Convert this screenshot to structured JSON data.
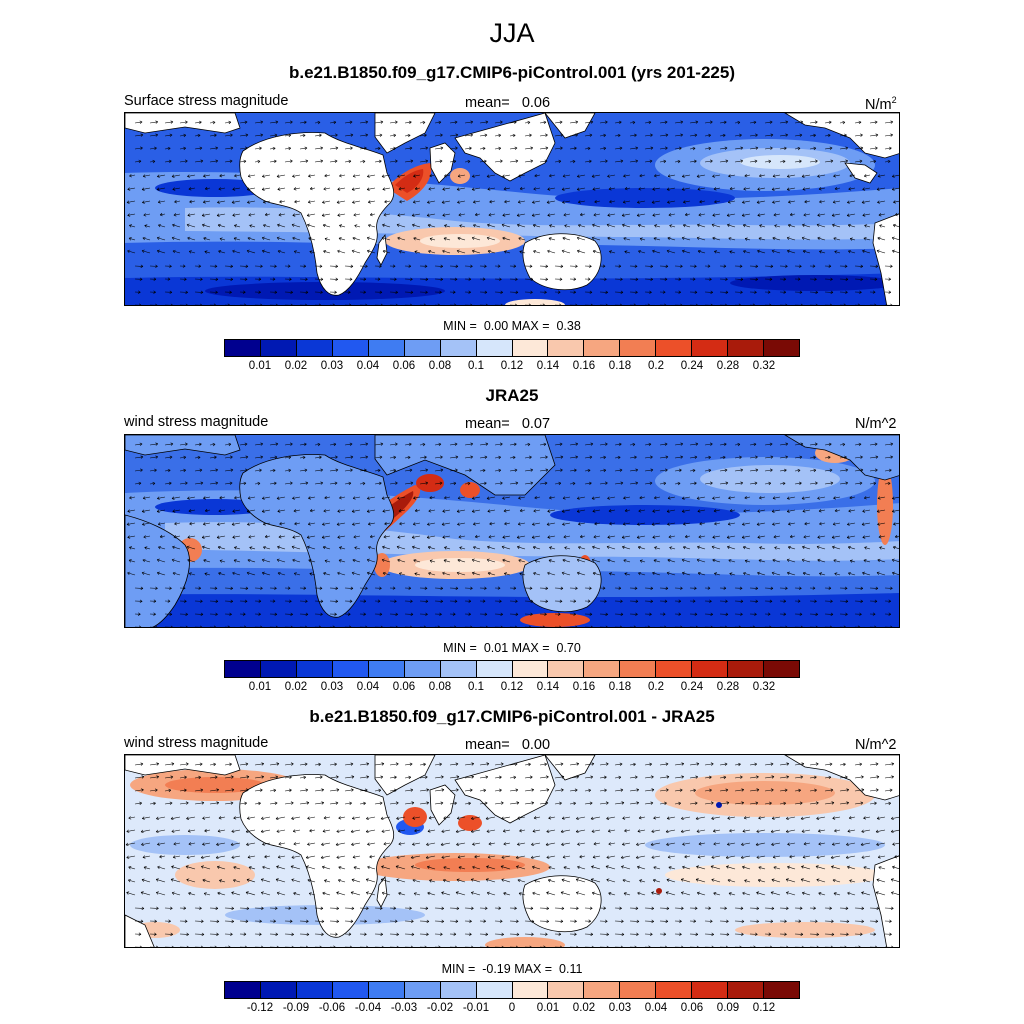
{
  "title": "JJA",
  "colors": {
    "abs_scale": [
      "#00008f",
      "#0019b3",
      "#0a37d6",
      "#2158f0",
      "#3f7cf2",
      "#6e9df4",
      "#a4c2f7",
      "#d6e6fb",
      "#fde8d8",
      "#f9c8ad",
      "#f6a680",
      "#f27e53",
      "#ec5029",
      "#d42c14",
      "#a91b0b",
      "#7a0a05"
    ],
    "diff_scale": [
      "#00008f",
      "#0019b3",
      "#0a37d6",
      "#2158f0",
      "#3f7cf2",
      "#6e9df4",
      "#a4c2f7",
      "#d6e6fb",
      "#fde8d8",
      "#f9c8ad",
      "#f6a680",
      "#f27e53",
      "#ec5029",
      "#d42c14",
      "#a91b0b",
      "#7a0a05"
    ],
    "land": "#ffffff",
    "ocean_base_1": "#2a5fe6",
    "ocean_base_2": "#3a6fe8",
    "ocean_base_3": "#dde9fb"
  },
  "panels": [
    {
      "title": "b.e21.B1850.f09_g17.CMIP6-piControl.001 (yrs 201-225)",
      "left_label": "Surface stress magnitude",
      "mean_label": "mean=",
      "mean_value": "0.06",
      "units_base": "N/m",
      "units_sup": "2",
      "min_label": "MIN =",
      "min_value": "0.00",
      "max_label": "MAX =",
      "max_value": "0.38",
      "colorbar_ticks": [
        "0.01",
        "0.02",
        "0.03",
        "0.04",
        "0.06",
        "0.08",
        "0.1",
        "0.12",
        "0.14",
        "0.16",
        "0.18",
        "0.2",
        "0.24",
        "0.28",
        "0.32"
      ]
    },
    {
      "title": "JRA25",
      "left_label": "wind stress magnitude",
      "mean_label": "mean=",
      "mean_value": "0.07",
      "units": "N/m^2",
      "min_label": "MIN =",
      "min_value": "0.01",
      "max_label": "MAX =",
      "max_value": "0.70",
      "colorbar_ticks": [
        "0.01",
        "0.02",
        "0.03",
        "0.04",
        "0.06",
        "0.08",
        "0.1",
        "0.12",
        "0.14",
        "0.16",
        "0.18",
        "0.2",
        "0.24",
        "0.28",
        "0.32"
      ]
    },
    {
      "title": "b.e21.B1850.f09_g17.CMIP6-piControl.001 - JRA25",
      "left_label": "wind stress magnitude",
      "mean_label": "mean=",
      "mean_value": "0.00",
      "units": "N/m^2",
      "min_label": "MIN =",
      "min_value": "-0.19",
      "max_label": "MAX =",
      "max_value": "0.11",
      "colorbar_ticks": [
        "-0.12",
        "-0.09",
        "-0.06",
        "-0.04",
        "-0.03",
        "-0.02",
        "-0.01",
        "0",
        "0.01",
        "0.02",
        "0.03",
        "0.04",
        "0.06",
        "0.09",
        "0.12"
      ]
    }
  ]
}
